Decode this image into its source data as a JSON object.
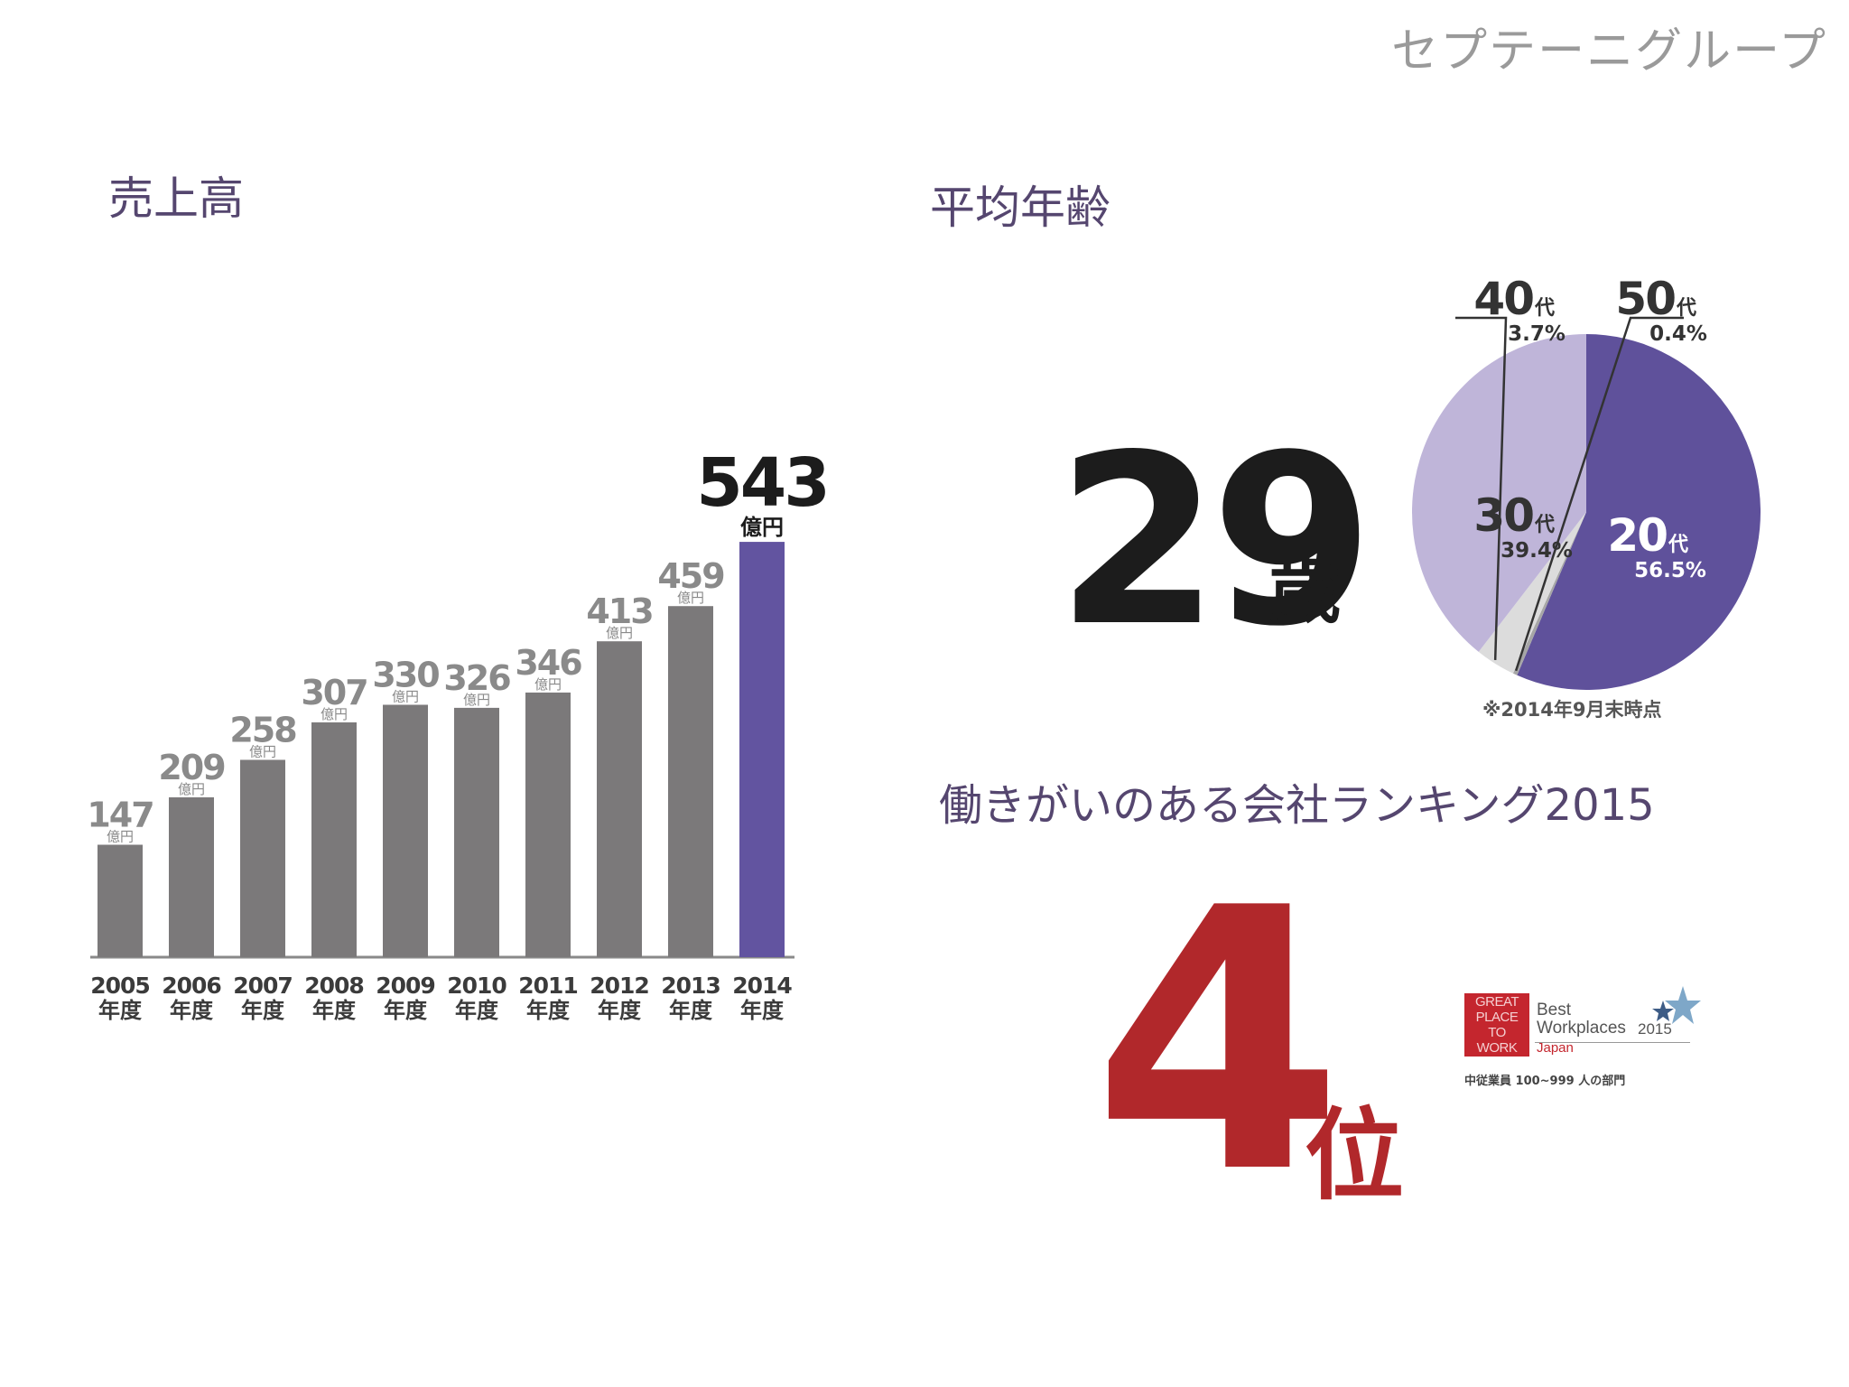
{
  "header": {
    "company": "セプテーニグループ"
  },
  "sales": {
    "title": "売上高",
    "unit": "億円",
    "year_suffix": "年度"
  },
  "age": {
    "title": "平均年齢",
    "value": "29",
    "unit": "歳",
    "note": "※2014年9月末時点"
  },
  "ranking": {
    "title": "働きがいのある会社ランキング2015",
    "rank": "4",
    "rank_unit": "位",
    "badge": {
      "gptw_lines": [
        "GREAT",
        "PLACE",
        "TO",
        "WORK"
      ],
      "best": "Best",
      "workplaces": "Workplaces",
      "year": "2015",
      "country": "Japan",
      "category": "中従業員 100~999 人の部門"
    }
  },
  "colors": {
    "bar_gray": "#7b797a",
    "bar_highlight": "#6254a0",
    "pie_20s": "#5f519b",
    "pie_30s": "#bfb5d9",
    "pie_40s": "#dcdcdc",
    "pie_50s": "#a6a6a6",
    "heading": "#55466f",
    "rank_red": "#b1282b"
  },
  "chart_data": [
    {
      "type": "bar",
      "title": "売上高",
      "categories": [
        "2005",
        "2006",
        "2007",
        "2008",
        "2009",
        "2010",
        "2011",
        "2012",
        "2013",
        "2014"
      ],
      "values": [
        147,
        209,
        258,
        307,
        330,
        326,
        346,
        413,
        459,
        543
      ],
      "value_unit": "億円",
      "category_suffix": "年度",
      "highlight_index": 9
    },
    {
      "type": "pie",
      "title": "平均年齢",
      "unit_label": "代",
      "slices": [
        {
          "label": "20",
          "value": 56.5,
          "pct_label": "56.5%"
        },
        {
          "label": "50",
          "value": 0.4,
          "pct_label": "0.4%"
        },
        {
          "label": "40",
          "value": 3.7,
          "pct_label": "3.7%"
        },
        {
          "label": "30",
          "value": 39.4,
          "pct_label": "39.4%"
        }
      ]
    }
  ]
}
